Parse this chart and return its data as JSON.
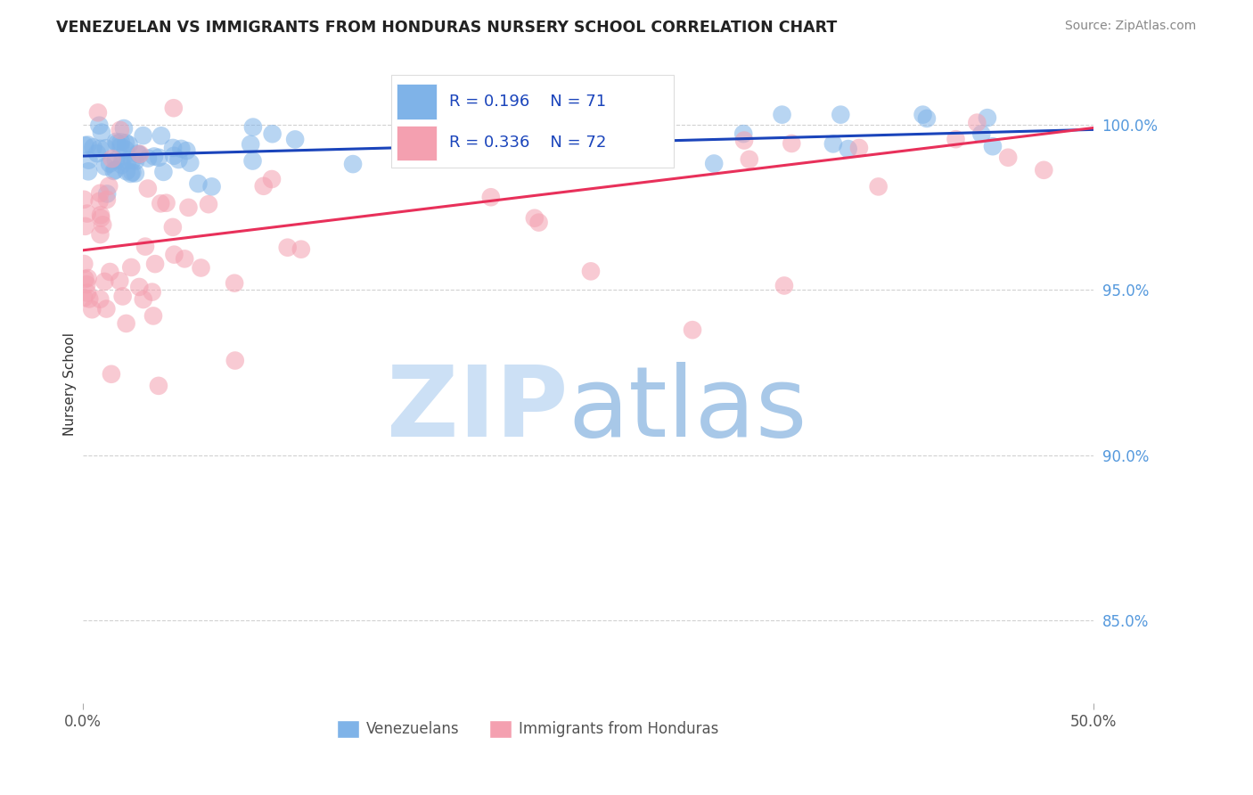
{
  "title": "VENEZUELAN VS IMMIGRANTS FROM HONDURAS NURSERY SCHOOL CORRELATION CHART",
  "source": "Source: ZipAtlas.com",
  "ylabel": "Nursery School",
  "xmin": 0.0,
  "xmax": 50.0,
  "ymin": 82.5,
  "ymax": 101.8,
  "yticks": [
    85.0,
    90.0,
    95.0,
    100.0
  ],
  "ytick_labels": [
    "85.0%",
    "90.0%",
    "95.0%",
    "100.0%"
  ],
  "legend_blue_r": "0.196",
  "legend_blue_n": "71",
  "legend_pink_r": "0.336",
  "legend_pink_n": "72",
  "legend_label_blue": "Venezuelans",
  "legend_label_pink": "Immigrants from Honduras",
  "blue_color": "#7fb3e8",
  "pink_color": "#f4a0b0",
  "blue_line_color": "#1a44bb",
  "pink_line_color": "#e8305a",
  "text_blue_color": "#1a44bb",
  "watermark_zip_color": "#cce0f5",
  "watermark_atlas_color": "#a8c8e8",
  "blue_line_intercept": 99.05,
  "blue_line_slope": 0.016,
  "pink_line_intercept": 96.2,
  "pink_line_slope": 0.074,
  "background_color": "#ffffff",
  "grid_color": "#cccccc",
  "tick_color": "#aaaaaa",
  "title_color": "#222222",
  "source_color": "#888888",
  "ylabel_color": "#333333",
  "xtick_color": "#555555",
  "ytick_color_hex": "#5599dd"
}
